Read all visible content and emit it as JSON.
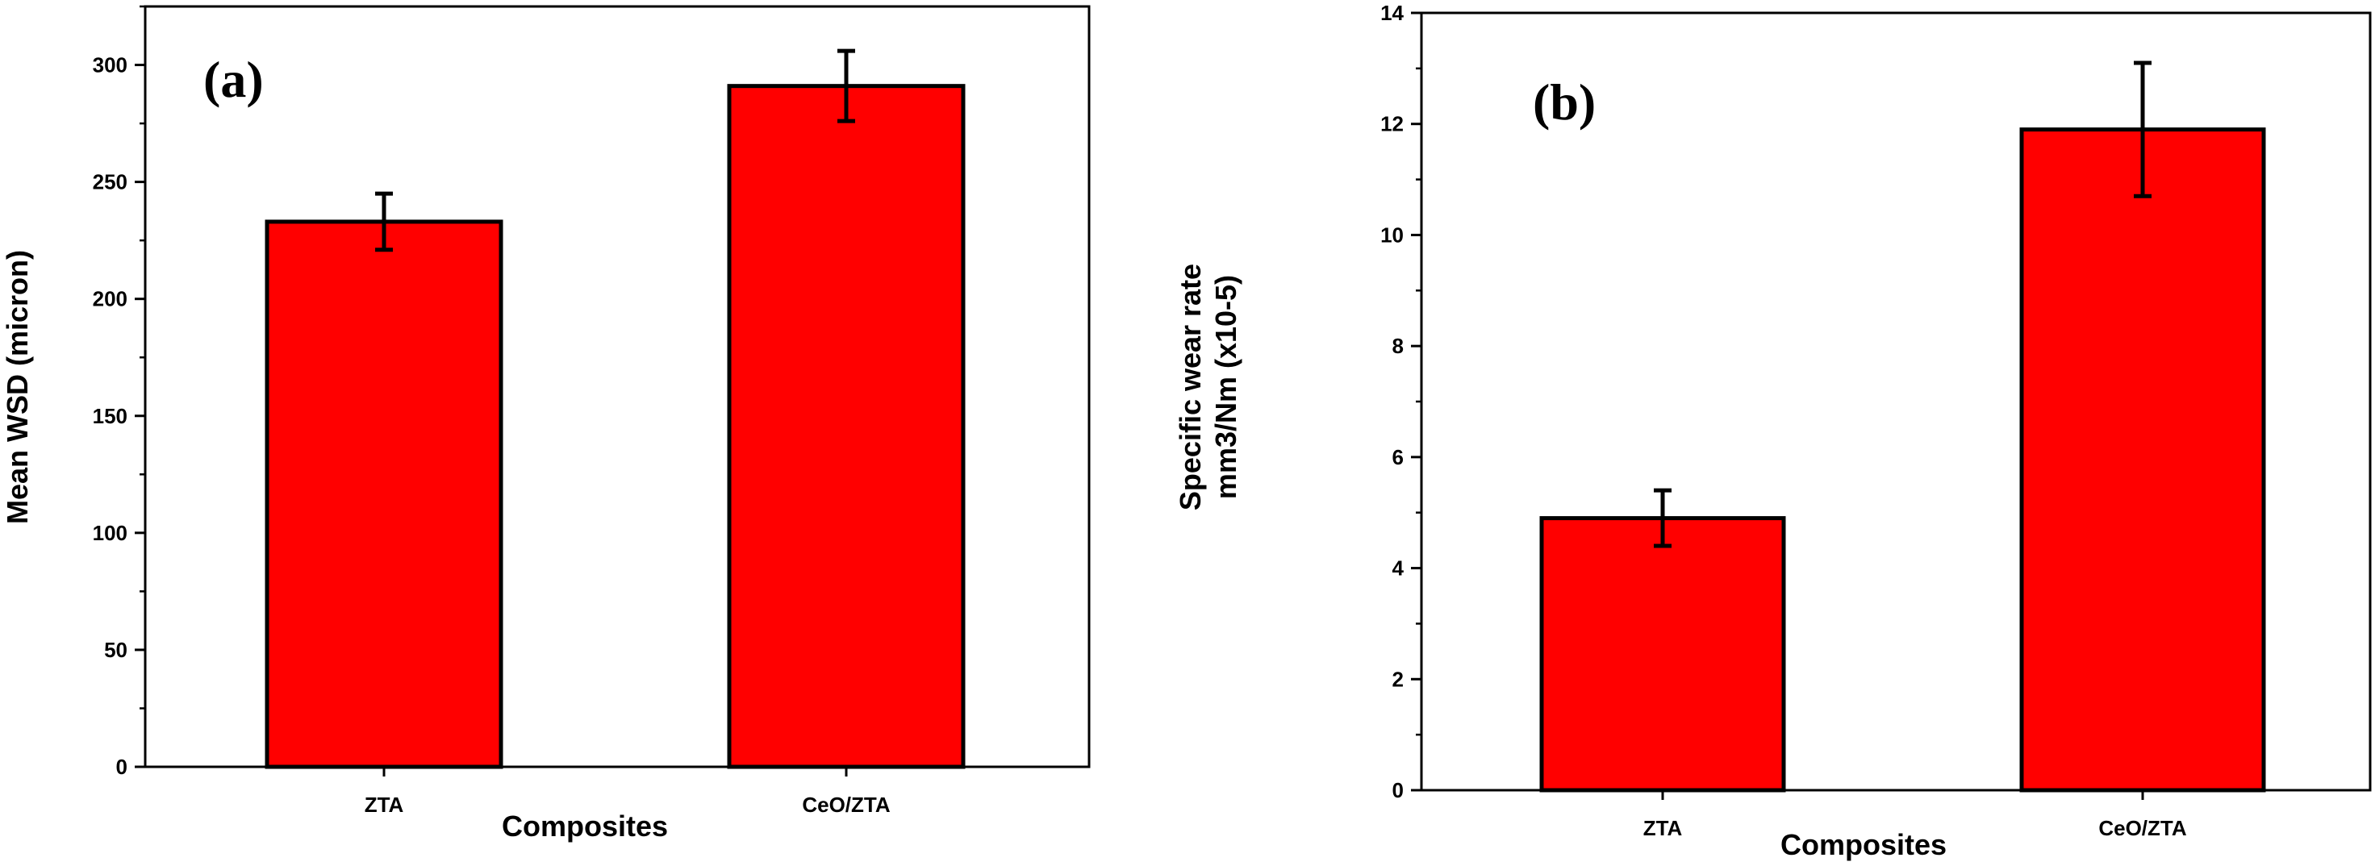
{
  "colors": {
    "bar_fill": "#ff0000",
    "bar_stroke": "#000000",
    "axis": "#000000"
  },
  "chart_data": [
    {
      "type": "bar",
      "panel_label": "(a)",
      "categories": [
        "ZTA",
        "CeO/ZTA"
      ],
      "values": [
        233,
        291
      ],
      "errors": [
        12,
        15
      ],
      "xlabel": "Composites",
      "ylabel": "Mean WSD (micron)",
      "ylim": [
        0,
        325
      ],
      "yticks": [
        0,
        50,
        100,
        150,
        200,
        250,
        300
      ],
      "minor_step": 25,
      "grid": false,
      "legend": "none"
    },
    {
      "type": "bar",
      "panel_label": "(b)",
      "categories": [
        "ZTA",
        "CeO/ZTA"
      ],
      "values": [
        4.9,
        11.9
      ],
      "errors": [
        0.5,
        1.2
      ],
      "xlabel": "Composites",
      "ylabel": "Specific wear rate",
      "ylabel_line2": "mm3/Nm (x10-5)",
      "ylim": [
        0,
        14
      ],
      "yticks": [
        0,
        2,
        4,
        6,
        8,
        10,
        12,
        14
      ],
      "minor_step": 1,
      "grid": false,
      "legend": "none"
    }
  ]
}
